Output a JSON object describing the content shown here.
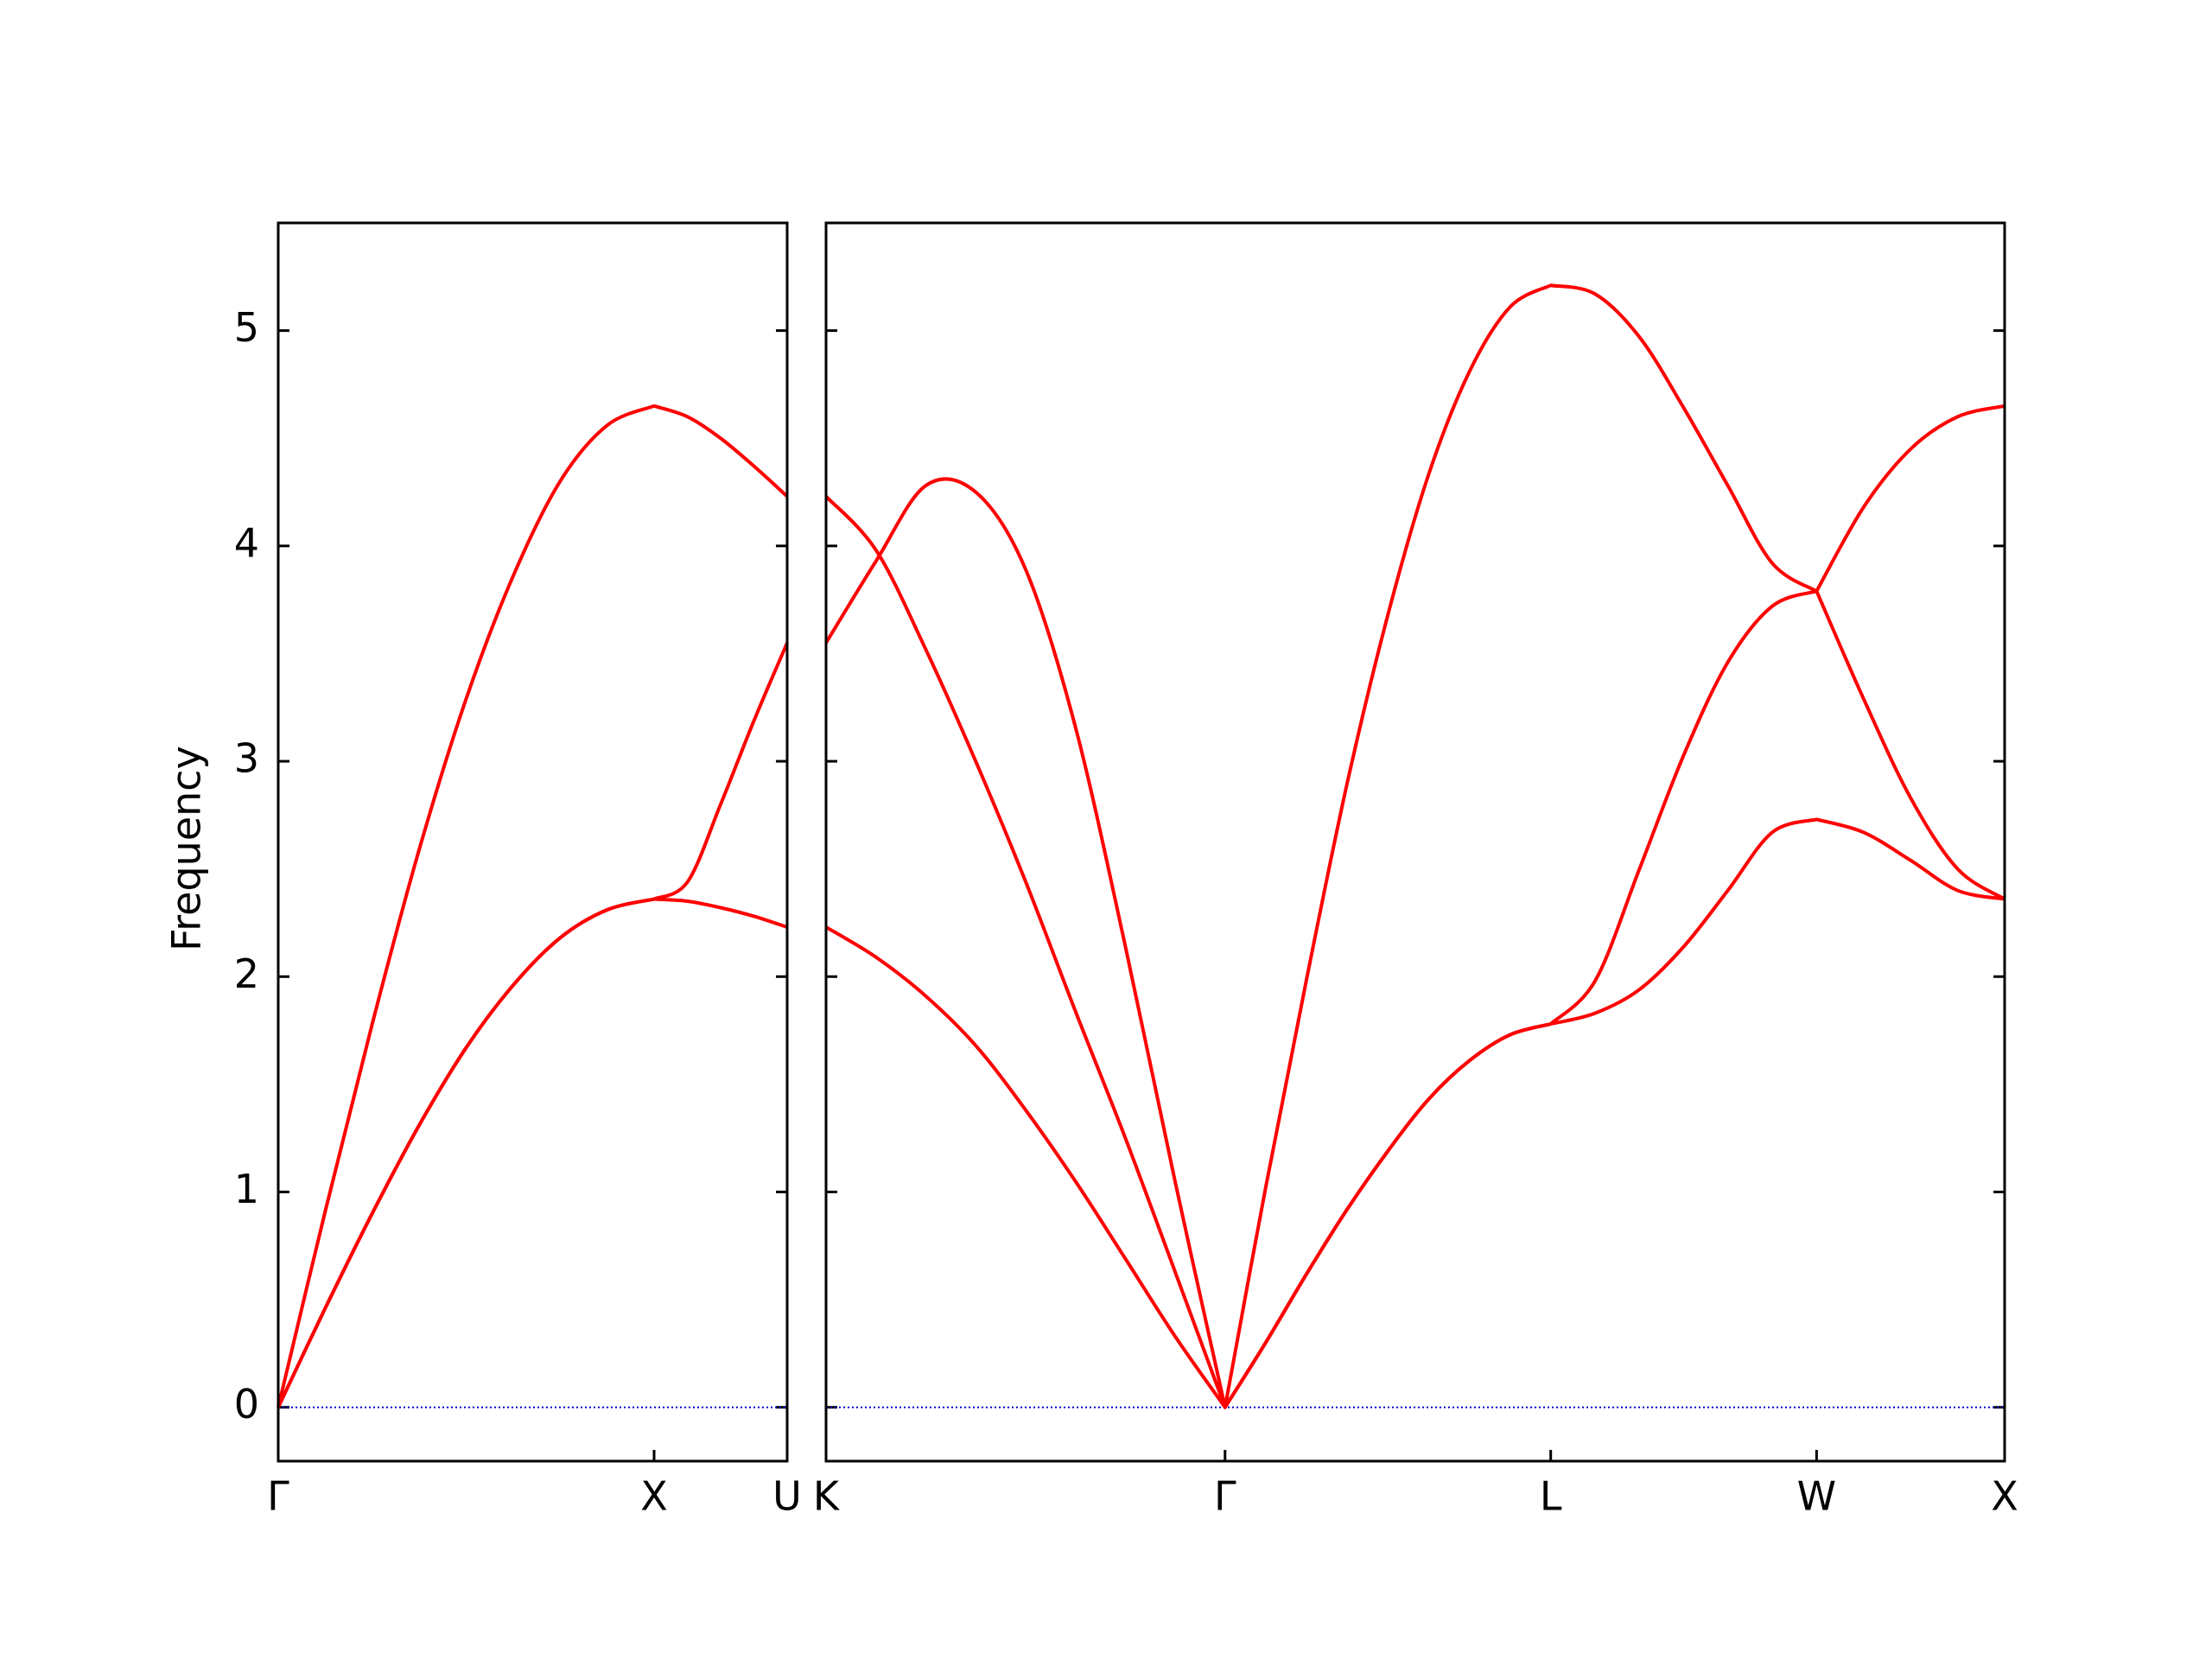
{
  "chart_data": [
    {
      "type": "line",
      "ylabel": "Frequency",
      "x": [
        0,
        0.125,
        0.25,
        0.375,
        0.5,
        0.625,
        0.75,
        0.875,
        1,
        1.089,
        1.177,
        1.266,
        1.354
      ],
      "series": [
        {
          "color": "#ff0000",
          "values": [
            0,
            0.46,
            0.9,
            1.31,
            1.67,
            1.96,
            2.18,
            2.31,
            2.36,
            2.35,
            2.32,
            2.28,
            2.23
          ]
        },
        {
          "color": "#ff0000",
          "values": [
            0,
            0.46,
            0.9,
            1.31,
            1.67,
            1.96,
            2.18,
            2.31,
            2.36,
            2.44,
            2.8,
            3.19,
            3.55
          ]
        },
        {
          "color": "#ff0000",
          "values": [
            0,
            0.91,
            1.78,
            2.59,
            3.29,
            3.86,
            4.3,
            4.56,
            4.65,
            4.6,
            4.5,
            4.37,
            4.23
          ]
        }
      ],
      "xlim": [
        0,
        1.354
      ],
      "xticks": [
        {
          "value": 0,
          "label": "Γ"
        },
        {
          "value": 1,
          "label": "X"
        },
        {
          "value": 1.354,
          "label": "U"
        }
      ],
      "ylim": [
        -0.25,
        5.5
      ],
      "yticks": [
        0,
        1,
        2,
        3,
        4,
        5
      ],
      "hline": 0,
      "hline_color": "#0000cc"
    },
    {
      "type": "line",
      "x": [
        0,
        0.133,
        0.265,
        0.398,
        0.531,
        0.663,
        0.796,
        0.928,
        1.061,
        1.169,
        1.278,
        1.386,
        1.494,
        1.602,
        1.711,
        1.819,
        1.927,
        2.045,
        2.163,
        2.281,
        2.398,
        2.516,
        2.634,
        2.759,
        2.884,
        3.009,
        3.134
      ],
      "series": [
        {
          "color": "#ff0000",
          "values": [
            2.23,
            2.09,
            1.91,
            1.68,
            1.38,
            1.05,
            0.69,
            0.33,
            0,
            0.3,
            0.62,
            0.92,
            1.19,
            1.43,
            1.61,
            1.73,
            1.78,
            1.83,
            1.94,
            2.14,
            2.4,
            2.67,
            2.73,
            2.67,
            2.54,
            2.4,
            2.36
          ]
        },
        {
          "color": "#ff0000",
          "values": [
            3.55,
            3.93,
            4.28,
            4.25,
            3.89,
            3.16,
            2.14,
            1.05,
            0,
            0.3,
            0.62,
            0.92,
            1.19,
            1.43,
            1.61,
            1.73,
            1.78,
            1.98,
            2.5,
            3.03,
            3.46,
            3.72,
            3.79,
            4.18,
            4.45,
            4.6,
            4.65
          ]
        },
        {
          "color": "#ff0000",
          "values": [
            4.23,
            3.98,
            3.52,
            3.0,
            2.44,
            1.84,
            1.25,
            0.63,
            0,
            1.02,
            1.99,
            2.9,
            3.68,
            4.33,
            4.81,
            5.11,
            5.21,
            5.17,
            4.97,
            4.64,
            4.28,
            3.92,
            3.79,
            3.29,
            2.83,
            2.5,
            2.36
          ]
        }
      ],
      "xlim": [
        0,
        3.134
      ],
      "xticks": [
        {
          "value": 0,
          "label": "K"
        },
        {
          "value": 1.061,
          "label": "Γ"
        },
        {
          "value": 1.927,
          "label": "L"
        },
        {
          "value": 2.634,
          "label": "W"
        },
        {
          "value": 3.134,
          "label": "X"
        }
      ],
      "ylim": [
        -0.25,
        5.5
      ],
      "hline": 0,
      "hline_color": "#0000cc"
    }
  ]
}
